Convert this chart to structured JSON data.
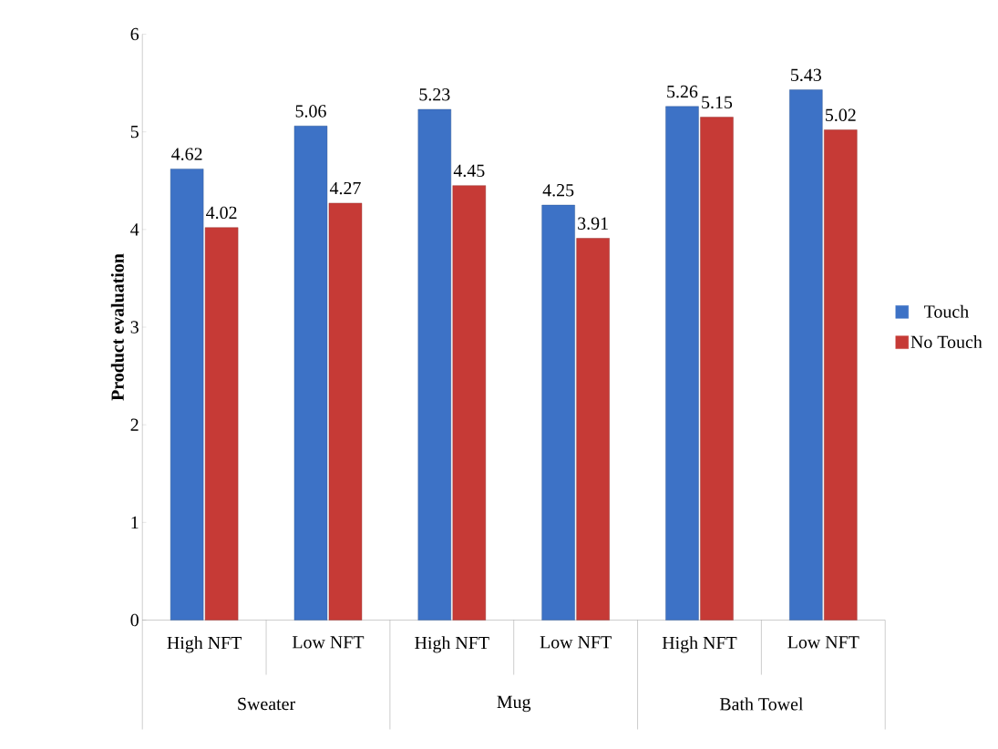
{
  "chart_data": {
    "type": "bar",
    "ylabel": "Product evaluation",
    "categories": [
      "High NFT",
      "Low NFT",
      "High NFT",
      "Low NFT",
      "High NFT",
      "Low NFT"
    ],
    "series": [
      {
        "name": "Touch",
        "color": "#3d72c6",
        "values": [
          4.62,
          5.06,
          5.23,
          4.25,
          5.26,
          5.43
        ]
      },
      {
        "name": "No Touch",
        "color": "#c63a36",
        "values": [
          4.02,
          4.27,
          4.45,
          3.91,
          5.15,
          5.02
        ]
      }
    ],
    "annotations": [
      "Sweater",
      "Mug",
      "Bath Towel"
    ],
    "ylim": [
      0,
      6
    ],
    "yticks": [
      0,
      1,
      2,
      3,
      4,
      5,
      6
    ],
    "data_labels": true,
    "legend": "right",
    "grid": false
  }
}
